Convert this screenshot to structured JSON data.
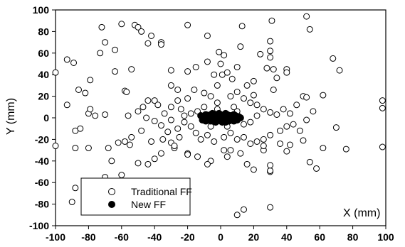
{
  "chart_data": {
    "type": "scatter",
    "title": "",
    "xlabel": "X (mm)",
    "ylabel": "Y (mm)",
    "xlim": [
      -100,
      100
    ],
    "ylim": [
      -100,
      100
    ],
    "xticks": [
      -100,
      -80,
      -60,
      -40,
      -20,
      0,
      20,
      40,
      60,
      80,
      100
    ],
    "yticks": [
      -100,
      -80,
      -60,
      -40,
      -20,
      0,
      20,
      40,
      60,
      80,
      100
    ],
    "grid": false,
    "legend_position": "bottom-left",
    "series": [
      {
        "name": "Traditional FF",
        "marker": "open-circle",
        "color": "#000000",
        "points": [
          [
            -72,
            84
          ],
          [
            -60,
            87
          ],
          [
            -52,
            86
          ],
          [
            -50,
            84
          ],
          [
            -48,
            80
          ],
          [
            -44,
            69
          ],
          [
            -42,
            76
          ],
          [
            -36,
            70
          ],
          [
            -36,
            68
          ],
          [
            -20,
            86
          ],
          [
            -8,
            76
          ],
          [
            -1,
            61
          ],
          [
            2,
            58
          ],
          [
            0,
            50
          ],
          [
            12,
            66
          ],
          [
            13,
            85
          ],
          [
            24,
            59
          ],
          [
            30,
            71
          ],
          [
            30,
            62
          ],
          [
            31,
            90
          ],
          [
            30,
            56
          ],
          [
            52,
            94
          ],
          [
            54,
            82
          ],
          [
            68,
            55
          ],
          [
            -100,
            42
          ],
          [
            -93,
            54
          ],
          [
            -89,
            51
          ],
          [
            -86,
            26
          ],
          [
            -82,
            23
          ],
          [
            -79,
            35
          ],
          [
            -76,
            2
          ],
          [
            -73,
            60
          ],
          [
            -70,
            70
          ],
          [
            -64,
            63
          ],
          [
            -64,
            43
          ],
          [
            -58,
            25
          ],
          [
            -57,
            24
          ],
          [
            -54,
            45
          ],
          [
            -47,
            10
          ],
          [
            -40,
            16
          ],
          [
            -30,
            44
          ],
          [
            -20,
            43
          ],
          [
            -15,
            47
          ],
          [
            -8,
            52
          ],
          [
            -4,
            40
          ],
          [
            1,
            40
          ],
          [
            4,
            42
          ],
          [
            7,
            36
          ],
          [
            10,
            47
          ],
          [
            20,
            21
          ],
          [
            16,
            30
          ],
          [
            28,
            46
          ],
          [
            32,
            45
          ],
          [
            34,
            37
          ],
          [
            40,
            45
          ],
          [
            40,
            42
          ],
          [
            50,
            20
          ],
          [
            52,
            19
          ],
          [
            62,
            21
          ],
          [
            72,
            44
          ],
          [
            98,
            16
          ],
          [
            98,
            9
          ],
          [
            -93,
            12
          ],
          [
            -88,
            -12
          ],
          [
            -85,
            -10
          ],
          [
            -80,
            4
          ],
          [
            -79,
            8
          ],
          [
            -70,
            3
          ],
          [
            -62,
            -23
          ],
          [
            -58,
            -22
          ],
          [
            -56,
            2
          ],
          [
            -55,
            -25
          ],
          [
            -44,
            -43
          ],
          [
            -40,
            -38
          ],
          [
            -36,
            -33
          ],
          [
            -28,
            -28
          ],
          [
            -30,
            -23
          ],
          [
            -20,
            -33
          ],
          [
            -14,
            -36
          ],
          [
            -6,
            -40
          ],
          [
            -8,
            -43
          ],
          [
            4,
            -36
          ],
          [
            6,
            -30
          ],
          [
            12,
            -33
          ],
          [
            16,
            -43
          ],
          [
            20,
            -48
          ],
          [
            26,
            -30
          ],
          [
            30,
            -50
          ],
          [
            30,
            -49
          ],
          [
            30,
            -44
          ],
          [
            36,
            -24
          ],
          [
            40,
            -31
          ],
          [
            42,
            -25
          ],
          [
            50,
            -21
          ],
          [
            54,
            -41
          ],
          [
            58,
            -47
          ],
          [
            62,
            -28
          ],
          [
            70,
            -9
          ],
          [
            76,
            -29
          ],
          [
            98,
            -27
          ],
          [
            -100,
            -26
          ],
          [
            -88,
            -28
          ],
          [
            -80,
            -28
          ],
          [
            -68,
            -28
          ],
          [
            -66,
            -40
          ],
          [
            -70,
            -55
          ],
          [
            -66,
            -62
          ],
          [
            -50,
            -42
          ],
          [
            -60,
            -53
          ],
          [
            -88,
            -65
          ],
          [
            -90,
            -78
          ],
          [
            10,
            -90
          ],
          [
            14,
            -85
          ],
          [
            30,
            -83
          ],
          [
            -12,
            -20
          ],
          [
            -15,
            -14
          ],
          [
            -25,
            -18
          ],
          [
            -32,
            -13
          ],
          [
            -36,
            -7
          ],
          [
            -40,
            -3
          ],
          [
            -45,
            0
          ],
          [
            -50,
            6
          ],
          [
            -44,
            16
          ],
          [
            -38,
            12
          ],
          [
            -30,
            10
          ],
          [
            -26,
            16
          ],
          [
            -24,
            8
          ],
          [
            -20,
            18
          ],
          [
            -16,
            26
          ],
          [
            -10,
            23
          ],
          [
            -6,
            20
          ],
          [
            -2,
            14
          ],
          [
            6,
            20
          ],
          [
            10,
            24
          ],
          [
            14,
            18
          ],
          [
            18,
            14
          ],
          [
            22,
            12
          ],
          [
            26,
            8
          ],
          [
            30,
            5
          ],
          [
            34,
            3
          ],
          [
            38,
            8
          ],
          [
            42,
            4
          ],
          [
            46,
            12
          ],
          [
            44,
            -6
          ],
          [
            40,
            -8
          ],
          [
            36,
            -12
          ],
          [
            30,
            -16
          ],
          [
            26,
            -20
          ],
          [
            22,
            -22
          ],
          [
            18,
            -24
          ],
          [
            14,
            -18
          ],
          [
            10,
            -20
          ],
          [
            6,
            -14
          ],
          [
            2,
            -18
          ],
          [
            -4,
            -22
          ],
          [
            -8,
            -16
          ],
          [
            -18,
            -8
          ],
          [
            -22,
            -4
          ],
          [
            -26,
            -10
          ],
          [
            -30,
            -2
          ],
          [
            -34,
            4
          ],
          [
            -14,
            6
          ],
          [
            -10,
            10
          ],
          [
            10,
            6
          ],
          [
            14,
            -6
          ],
          [
            18,
            -4
          ],
          [
            22,
            2
          ],
          [
            -22,
            2
          ],
          [
            -18,
            4
          ],
          [
            -6,
            -8
          ],
          [
            4,
            -8
          ],
          [
            8,
            10
          ],
          [
            -2,
            8
          ],
          [
            -35,
            -20
          ],
          [
            -42,
            -22
          ],
          [
            -48,
            -12
          ],
          [
            -54,
            -18
          ],
          [
            48,
            -12
          ],
          [
            52,
            -2
          ],
          [
            56,
            6
          ],
          [
            -26,
            26
          ],
          [
            26,
            -26
          ],
          [
            -30,
            30
          ],
          [
            32,
            26
          ],
          [
            -28,
            -26
          ],
          [
            -2,
            30
          ],
          [
            2,
            -30
          ],
          [
            20,
            34
          ],
          [
            -20,
            -34
          ]
        ]
      },
      {
        "name": "New FF",
        "marker": "filled-circle",
        "color": "#000000",
        "points": [
          [
            -12,
            2
          ],
          [
            -10,
            -1
          ],
          [
            -9,
            3
          ],
          [
            -8,
            -2
          ],
          [
            -7,
            1
          ],
          [
            -6,
            -3
          ],
          [
            -5,
            4
          ],
          [
            -4,
            0
          ],
          [
            -3,
            -4
          ],
          [
            -2,
            2
          ],
          [
            -1,
            -1
          ],
          [
            0,
            3
          ],
          [
            0,
            -3
          ],
          [
            1,
            1
          ],
          [
            2,
            -2
          ],
          [
            3,
            4
          ],
          [
            4,
            0
          ],
          [
            5,
            -3
          ],
          [
            6,
            2
          ],
          [
            7,
            -1
          ],
          [
            8,
            3
          ],
          [
            9,
            0
          ],
          [
            10,
            -2
          ],
          [
            11,
            1
          ],
          [
            -11,
            -2
          ],
          [
            -9,
            -3
          ],
          [
            -6,
            3
          ],
          [
            -3,
            3
          ],
          [
            3,
            -4
          ],
          [
            6,
            -2
          ],
          [
            9,
            2
          ],
          [
            12,
            0
          ],
          [
            -8,
            1
          ],
          [
            -4,
            -2
          ],
          [
            2,
            2
          ],
          [
            8,
            -3
          ],
          [
            -1,
            4
          ],
          [
            1,
            -4
          ],
          [
            4,
            3
          ],
          [
            -5,
            -1
          ]
        ]
      }
    ]
  }
}
